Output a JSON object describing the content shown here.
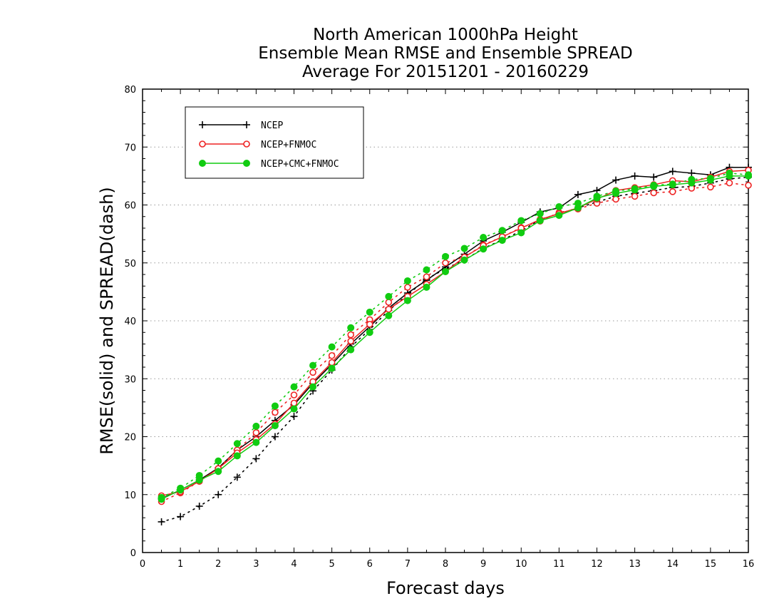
{
  "chart_data": {
    "type": "line",
    "title_lines": [
      "North American 1000hPa Height",
      "Ensemble Mean RMSE and Ensemble SPREAD",
      "Average For 20151201 - 20160229"
    ],
    "xlabel": "Forecast days",
    "ylabel": "RMSE(solid) and SPREAD(dash)",
    "xlim": [
      0,
      16
    ],
    "ylim": [
      0,
      80
    ],
    "xticks": [
      "0",
      "1",
      "2",
      "3",
      "4",
      "5",
      "6",
      "7",
      "8",
      "9",
      "10",
      "11",
      "12",
      "13",
      "14",
      "15",
      "16"
    ],
    "yticks": [
      "0",
      "10",
      "20",
      "30",
      "40",
      "50",
      "60",
      "70",
      "80"
    ],
    "grid": "horizontal dotted",
    "legend_placement": "top-left",
    "x": [
      0.5,
      1,
      1.5,
      2,
      2.5,
      3,
      3.5,
      4,
      4.5,
      5,
      5.5,
      6,
      6.5,
      7,
      7.5,
      8,
      8.5,
      9,
      9.5,
      10,
      10.5,
      11,
      11.5,
      12,
      12.5,
      13,
      13.5,
      14,
      14.5,
      15,
      15.5,
      16
    ],
    "series": [
      {
        "name": "NCEP",
        "color": "#000000",
        "marker": "plus",
        "rmse": [
          9.3,
          10.8,
          12.5,
          14.6,
          17.7,
          20.0,
          22.8,
          25.5,
          29.2,
          32.5,
          36.0,
          39.0,
          42.2,
          44.8,
          47.0,
          49.3,
          51.5,
          53.8,
          55.3,
          57.0,
          58.8,
          59.5,
          61.8,
          62.5,
          64.3,
          65.0,
          64.8,
          65.8,
          65.5,
          65.2,
          66.5,
          66.5
        ],
        "spread": [
          5.3,
          6.2,
          8.0,
          10.0,
          13.0,
          16.2,
          20.0,
          23.5,
          27.9,
          31.5,
          35.5,
          38.5,
          41.8,
          44.5,
          47.2,
          49.0,
          50.5,
          52.5,
          54.0,
          55.5,
          57.5,
          58.5,
          59.5,
          60.5,
          61.5,
          62.0,
          62.5,
          63.0,
          63.2,
          63.8,
          64.5,
          64.8
        ]
      },
      {
        "name": "NCEP+FNMOC",
        "color": "#ee2222",
        "marker": "open-circle",
        "rmse": [
          9.8,
          10.5,
          12.3,
          14.5,
          17.2,
          19.5,
          22.2,
          25.8,
          29.5,
          32.8,
          36.5,
          39.4,
          42.0,
          44.2,
          46.3,
          48.5,
          51.0,
          53.0,
          54.5,
          56.0,
          57.5,
          58.5,
          59.5,
          61.0,
          62.5,
          63.0,
          63.5,
          64.2,
          64.0,
          64.8,
          65.8,
          66.0
        ],
        "spread": [
          8.8,
          10.3,
          12.3,
          14.5,
          17.7,
          20.7,
          24.2,
          27.2,
          31.1,
          34.0,
          37.6,
          40.2,
          43.2,
          45.8,
          47.6,
          50.0,
          51.0,
          53.1,
          54.5,
          56.1,
          57.2,
          58.7,
          59.3,
          60.3,
          61.0,
          61.5,
          62.1,
          62.3,
          62.9,
          63.1,
          63.8,
          63.4
        ]
      },
      {
        "name": "NCEP+CMC+FNMOC",
        "color": "#11cc11",
        "marker": "filled-circle",
        "rmse": [
          9.2,
          10.8,
          12.5,
          14.0,
          16.7,
          19.0,
          21.9,
          24.8,
          28.6,
          31.8,
          35.0,
          38.0,
          40.9,
          43.5,
          45.8,
          48.5,
          50.5,
          52.4,
          53.9,
          55.2,
          57.3,
          58.2,
          59.5,
          61.2,
          62.0,
          62.6,
          63.2,
          63.5,
          63.8,
          64.3,
          65.0,
          65.0
        ],
        "spread": [
          9.5,
          11.1,
          13.3,
          15.8,
          18.8,
          21.8,
          25.3,
          28.6,
          32.3,
          35.5,
          38.8,
          41.5,
          44.2,
          46.9,
          48.8,
          51.1,
          52.5,
          54.4,
          55.6,
          57.3,
          58.5,
          59.7,
          60.3,
          61.5,
          62.4,
          62.8,
          63.4,
          63.6,
          64.4,
          64.6,
          65.5,
          65.2
        ]
      }
    ]
  }
}
